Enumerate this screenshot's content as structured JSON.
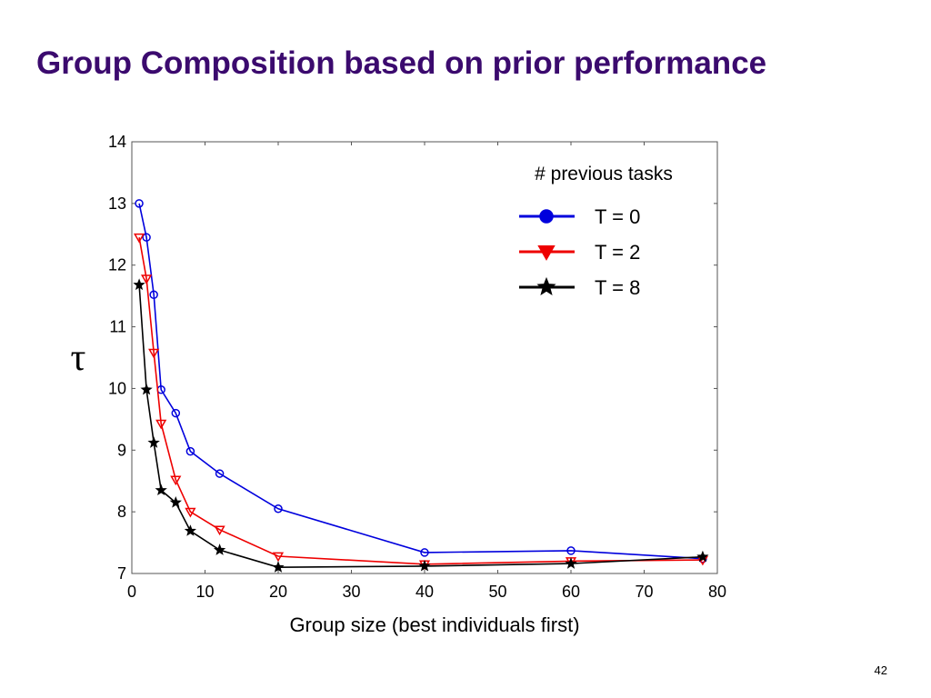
{
  "slide": {
    "title": "Group Composition based on prior performance",
    "page_number": "42"
  },
  "chart_data": {
    "type": "line",
    "title": "",
    "xlabel": "Group size (best individuals first)",
    "ylabel": "τ",
    "xlim": [
      0,
      80
    ],
    "ylim": [
      7,
      14
    ],
    "xticks": [
      0,
      10,
      20,
      30,
      40,
      50,
      60,
      70,
      80
    ],
    "yticks": [
      7,
      8,
      9,
      10,
      11,
      12,
      13,
      14
    ],
    "grid": false,
    "legend": {
      "title": "# previous tasks",
      "placement": "top-right"
    },
    "series": [
      {
        "name": "T = 0",
        "color": "#0000dd",
        "marker": "circle",
        "x": [
          1,
          2,
          3,
          4,
          6,
          8,
          12,
          20,
          40,
          60,
          78
        ],
        "y": [
          13.0,
          12.45,
          11.52,
          9.98,
          9.6,
          8.98,
          8.62,
          8.05,
          7.34,
          7.37,
          7.24
        ]
      },
      {
        "name": "T = 2",
        "color": "#ee0000",
        "marker": "triangle-down",
        "x": [
          1,
          2,
          3,
          4,
          6,
          8,
          12,
          20,
          40,
          60,
          78
        ],
        "y": [
          12.45,
          11.78,
          10.58,
          9.43,
          8.52,
          8.0,
          7.71,
          7.28,
          7.15,
          7.2,
          7.22
        ]
      },
      {
        "name": "T = 8",
        "color": "#000000",
        "marker": "star",
        "x": [
          1,
          2,
          3,
          4,
          6,
          8,
          12,
          20,
          40,
          60,
          78
        ],
        "y": [
          11.68,
          9.98,
          9.12,
          8.35,
          8.15,
          7.69,
          7.38,
          7.1,
          7.12,
          7.16,
          7.27
        ]
      }
    ]
  }
}
